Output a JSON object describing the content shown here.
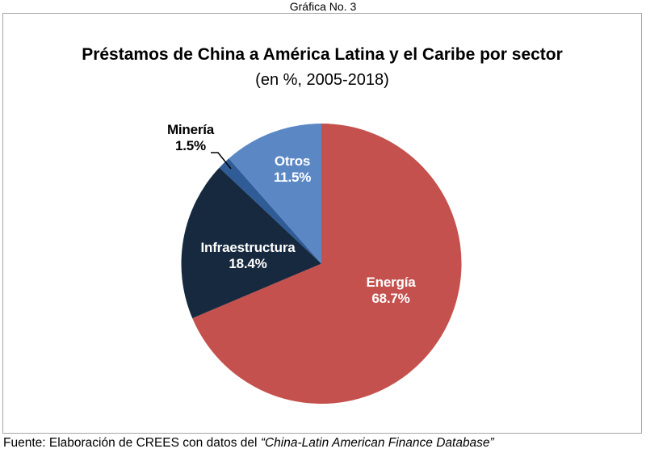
{
  "page": {
    "figure_label": "Gráfica No. 3",
    "title": "Préstamos de China a América Latina y el Caribe por sector",
    "subtitle": "(en %, 2005-2018)",
    "source_prefix": "Fuente: Elaboración de CREES con datos del ",
    "source_italic": "“China-Latin American Finance Database”"
  },
  "chart_data": {
    "type": "pie",
    "title": "Préstamos de China a América Latina y el Caribe por sector",
    "subtitle": "(en %, 2005-2018)",
    "start_angle_deg": 0,
    "direction": "clockwise",
    "legend": "none",
    "slices": [
      {
        "label": "Energía",
        "value": 68.7,
        "pct_label": "68.7%",
        "color": "#c4514d",
        "label_position": "inside",
        "label_color": "#ffffff"
      },
      {
        "label": "Infraestructura",
        "value": 18.4,
        "pct_label": "18.4%",
        "color": "#16293e",
        "label_position": "inside",
        "label_color": "#ffffff"
      },
      {
        "label": "Minería",
        "value": 1.5,
        "pct_label": "1.5%",
        "color": "#2f5b96",
        "label_position": "outside-callout",
        "label_color": "#000000"
      },
      {
        "label": "Otros",
        "value": 11.5,
        "pct_label": "11.5%",
        "color": "#5b87c5",
        "label_position": "inside",
        "label_color": "#ffffff"
      }
    ]
  }
}
